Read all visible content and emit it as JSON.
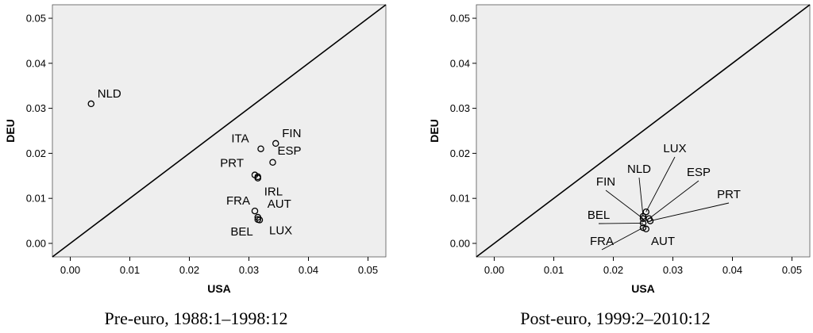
{
  "chart_data": [
    {
      "type": "scatter",
      "caption": "Pre-euro, 1988:1–1998:12",
      "xlabel": "USA",
      "ylabel": "DEU",
      "xlim": [
        -0.003,
        0.053
      ],
      "ylim": [
        -0.003,
        0.053
      ],
      "xticks": [
        "0.00",
        "0.01",
        "0.02",
        "0.03",
        "0.04",
        "0.05"
      ],
      "yticks": [
        "0.00",
        "0.01",
        "0.02",
        "0.03",
        "0.04",
        "0.05"
      ],
      "diagonal": true,
      "points": [
        {
          "label": "NLD",
          "x": 0.0035,
          "y": 0.031
        },
        {
          "label": "ITA",
          "x": 0.032,
          "y": 0.021
        },
        {
          "label": "FIN",
          "x": 0.0345,
          "y": 0.0222
        },
        {
          "label": "ESP",
          "x": 0.034,
          "y": 0.018
        },
        {
          "label": "PRT",
          "x": 0.031,
          "y": 0.0152
        },
        {
          "label": "",
          "x": 0.0315,
          "y": 0.0148
        },
        {
          "label": "IRL",
          "x": 0.0315,
          "y": 0.0145
        },
        {
          "label": "FRA",
          "x": 0.031,
          "y": 0.0072
        },
        {
          "label": "AUT",
          "x": 0.0315,
          "y": 0.0058
        },
        {
          "label": "BEL",
          "x": 0.0315,
          "y": 0.0053
        },
        {
          "label": "LUX",
          "x": 0.0318,
          "y": 0.0052
        }
      ]
    },
    {
      "type": "scatter",
      "caption": "Post-euro, 1999:2–2010:12",
      "xlabel": "USA",
      "ylabel": "DEU",
      "xlim": [
        -0.003,
        0.053
      ],
      "ylim": [
        -0.003,
        0.053
      ],
      "xticks": [
        "0.00",
        "0.01",
        "0.02",
        "0.03",
        "0.04",
        "0.05"
      ],
      "yticks": [
        "0.00",
        "0.01",
        "0.02",
        "0.03",
        "0.04",
        "0.05"
      ],
      "diagonal": true,
      "points": [
        {
          "label": "LUX",
          "x": 0.0255,
          "y": 0.007
        },
        {
          "label": "NLD",
          "x": 0.025,
          "y": 0.006
        },
        {
          "label": "FIN",
          "x": 0.025,
          "y": 0.0055
        },
        {
          "label": "ESP",
          "x": 0.026,
          "y": 0.0055
        },
        {
          "label": "PRT",
          "x": 0.0262,
          "y": 0.005
        },
        {
          "label": "BEL",
          "x": 0.025,
          "y": 0.0045
        },
        {
          "label": "FRA",
          "x": 0.025,
          "y": 0.0035
        },
        {
          "label": "AUT",
          "x": 0.0255,
          "y": 0.0032
        }
      ]
    }
  ]
}
